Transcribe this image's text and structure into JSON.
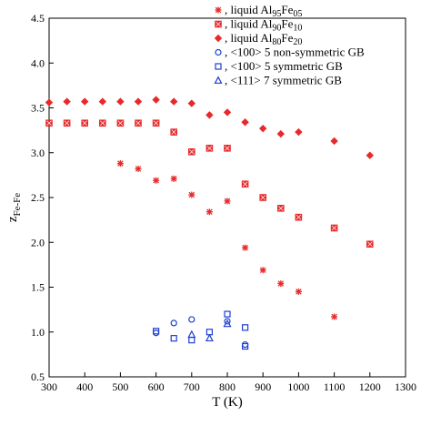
{
  "chart_data": {
    "type": "scatter",
    "xlabel": "T (K)",
    "ylabel": "z",
    "ylabel_sub": "Fe-Fe",
    "xlim": [
      300,
      1300
    ],
    "ylim": [
      0.5,
      4.5
    ],
    "xticks": [
      300,
      400,
      500,
      600,
      700,
      800,
      900,
      1000,
      1100,
      1200,
      1300
    ],
    "yticks": [
      0.5,
      1.0,
      1.5,
      2.0,
      2.5,
      3.0,
      3.5,
      4.0,
      4.5
    ],
    "ytick_labels": [
      "0.5",
      "1.0",
      "1.5",
      "2.0",
      "2.5",
      "3.0",
      "3.5",
      "4.0",
      "4.5"
    ],
    "grid": false,
    "legend_position": "top-right",
    "series": [
      {
        "legend_parts": [
          [
            "liquid Al",
            ""
          ],
          [
            "95",
            "sub"
          ],
          [
            "Fe",
            ""
          ],
          [
            "05",
            "sub"
          ]
        ],
        "marker": "asterisk",
        "color": "#e8292a",
        "points": [
          [
            500,
            2.88
          ],
          [
            550,
            2.82
          ],
          [
            600,
            2.69
          ],
          [
            650,
            2.71
          ],
          [
            700,
            2.53
          ],
          [
            750,
            2.34
          ],
          [
            800,
            2.46
          ],
          [
            850,
            1.94
          ],
          [
            900,
            1.69
          ],
          [
            950,
            1.54
          ],
          [
            1000,
            1.45
          ],
          [
            1100,
            1.17
          ]
        ]
      },
      {
        "legend_parts": [
          [
            "liquid Al",
            ""
          ],
          [
            "90",
            "sub"
          ],
          [
            "Fe",
            ""
          ],
          [
            "10",
            "sub"
          ]
        ],
        "marker": "square-filled",
        "color": "#e8292a",
        "points": [
          [
            300,
            3.33
          ],
          [
            350,
            3.33
          ],
          [
            400,
            3.33
          ],
          [
            450,
            3.33
          ],
          [
            500,
            3.33
          ],
          [
            550,
            3.33
          ],
          [
            600,
            3.33
          ],
          [
            650,
            3.23
          ],
          [
            700,
            3.01
          ],
          [
            750,
            3.05
          ],
          [
            800,
            3.05
          ],
          [
            850,
            2.65
          ],
          [
            900,
            2.5
          ],
          [
            950,
            2.38
          ],
          [
            1000,
            2.28
          ],
          [
            1100,
            2.16
          ],
          [
            1200,
            1.98
          ]
        ]
      },
      {
        "legend_parts": [
          [
            "liquid Al",
            ""
          ],
          [
            "80",
            "sub"
          ],
          [
            "Fe",
            ""
          ],
          [
            "20",
            "sub"
          ]
        ],
        "marker": "diamond",
        "color": "#e8292a",
        "points": [
          [
            300,
            3.56
          ],
          [
            350,
            3.57
          ],
          [
            400,
            3.57
          ],
          [
            450,
            3.57
          ],
          [
            500,
            3.57
          ],
          [
            550,
            3.57
          ],
          [
            600,
            3.59
          ],
          [
            650,
            3.57
          ],
          [
            700,
            3.55
          ],
          [
            750,
            3.42
          ],
          [
            800,
            3.45
          ],
          [
            850,
            3.34
          ],
          [
            900,
            3.27
          ],
          [
            950,
            3.21
          ],
          [
            1000,
            3.23
          ],
          [
            1100,
            3.13
          ],
          [
            1200,
            2.97
          ]
        ]
      },
      {
        "legend_parts": [
          [
            "<100>   5 non-symmetric GB",
            ""
          ]
        ],
        "marker": "circle-open",
        "color": "#1d3fd1",
        "points": [
          [
            600,
            0.99
          ],
          [
            650,
            1.1
          ],
          [
            700,
            1.14
          ],
          [
            800,
            1.12
          ],
          [
            850,
            0.86
          ]
        ]
      },
      {
        "legend_parts": [
          [
            "<100>   5 symmetric GB",
            ""
          ]
        ],
        "marker": "square-open",
        "color": "#1d3fd1",
        "points": [
          [
            600,
            1.01
          ],
          [
            650,
            0.93
          ],
          [
            700,
            0.91
          ],
          [
            750,
            1.0
          ],
          [
            800,
            1.2
          ],
          [
            850,
            1.05
          ],
          [
            850,
            0.84
          ]
        ]
      },
      {
        "legend_parts": [
          [
            "<111>   7 symmetric GB",
            ""
          ]
        ],
        "marker": "triangle-open",
        "color": "#1d3fd1",
        "points": [
          [
            700,
            0.97
          ],
          [
            750,
            0.93
          ],
          [
            800,
            1.09
          ]
        ]
      }
    ]
  }
}
